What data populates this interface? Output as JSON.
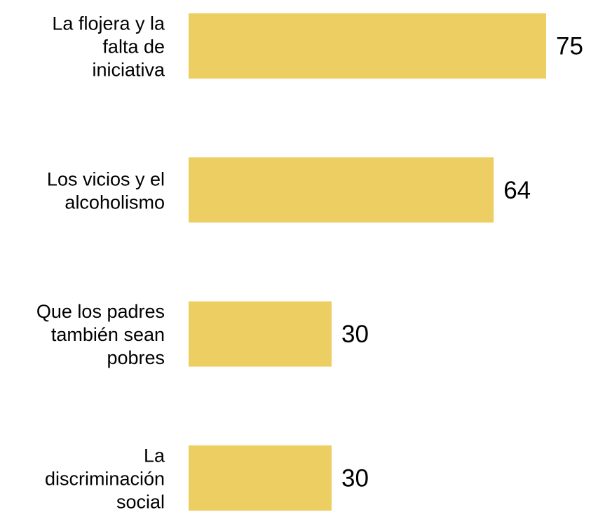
{
  "chart_data": {
    "type": "bar",
    "orientation": "horizontal",
    "categories": [
      [
        "La flojera y la",
        "falta de",
        "iniciativa"
      ],
      [
        "Los vicios y el",
        "alcoholismo"
      ],
      [
        "Que los padres",
        "también sean",
        "pobres"
      ],
      [
        "La",
        "discriminación",
        "social"
      ]
    ],
    "values": [
      75,
      64,
      30,
      30
    ],
    "value_labels": [
      "75",
      "64",
      "30",
      "30"
    ],
    "xlim": [
      0,
      75
    ],
    "grid": false,
    "legend": "none",
    "colors": {
      "bar": "#EDCE62",
      "text": "#000000",
      "background": "#FFFFFF"
    }
  }
}
